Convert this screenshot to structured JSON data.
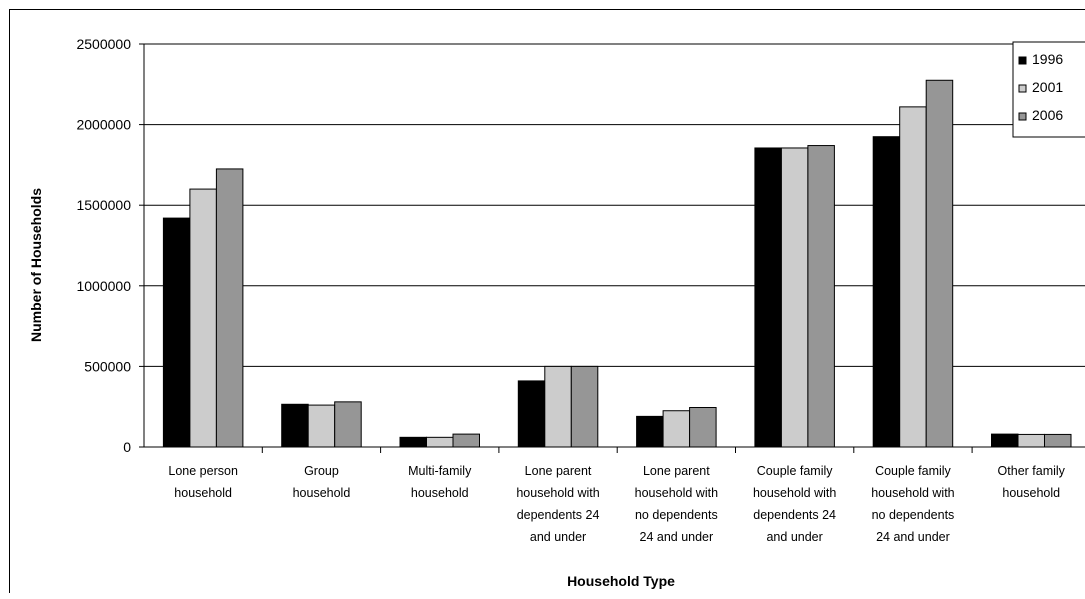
{
  "chart_data": {
    "type": "bar",
    "title": "",
    "xlabel": "Household Type",
    "ylabel": "Number of Households",
    "ylim": [
      0,
      2500000
    ],
    "yticks": [
      "0",
      "500000",
      "1000000",
      "1500000",
      "2000000",
      "2500000"
    ],
    "grid": true,
    "legend_position": "top-right",
    "categories": [
      [
        "Lone person",
        "household"
      ],
      [
        "Group",
        "household"
      ],
      [
        "Multi-family",
        "household"
      ],
      [
        "Lone parent",
        "household with",
        "dependents 24",
        "and under"
      ],
      [
        "Lone parent",
        "household with",
        "no dependents",
        "24 and under"
      ],
      [
        "Couple family",
        "household with",
        "dependents 24",
        "and under"
      ],
      [
        "Couple family",
        "household with",
        "no dependents",
        "24 and under"
      ],
      [
        "Other family",
        "household"
      ]
    ],
    "series": [
      {
        "name": "1996",
        "color": "#000000",
        "values": [
          1420000,
          265000,
          60000,
          410000,
          190000,
          1855000,
          1925000,
          80000
        ]
      },
      {
        "name": "2001",
        "color": "#cccccc",
        "values": [
          1600000,
          260000,
          60000,
          500000,
          225000,
          1855000,
          2110000,
          78000
        ]
      },
      {
        "name": "2006",
        "color": "#969696",
        "values": [
          1725000,
          280000,
          80000,
          500000,
          245000,
          1870000,
          2275000,
          78000
        ]
      }
    ]
  }
}
